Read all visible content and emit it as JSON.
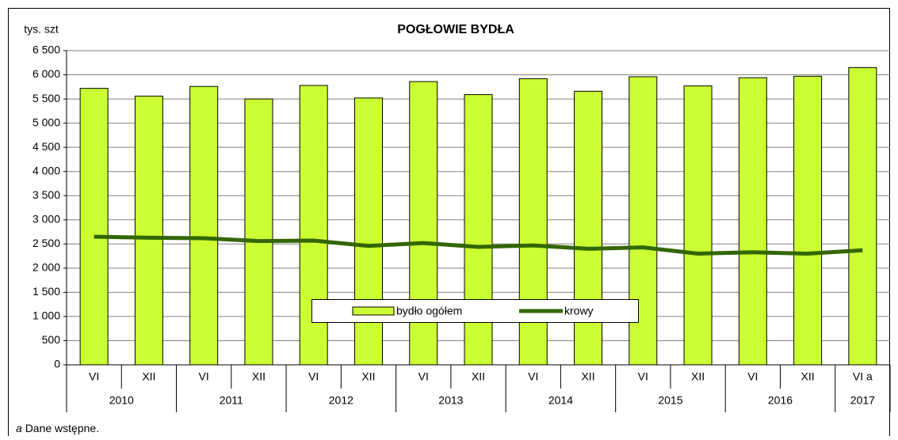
{
  "chart_data": {
    "type": "bar",
    "title": "POGŁOWIE BYDŁA",
    "y_label": "tys. szt",
    "categories": [
      "VI",
      "XII",
      "VI",
      "XII",
      "VI",
      "XII",
      "VI",
      "XII",
      "VI",
      "XII",
      "VI",
      "XII",
      "VI",
      "XII",
      "VI a"
    ],
    "years": [
      "2010",
      null,
      "2011",
      null,
      "2012",
      null,
      "2013",
      null,
      "2014",
      null,
      "2015",
      null,
      "2016",
      null,
      "2017"
    ],
    "series": [
      {
        "name": "bydło ogółem",
        "type": "bar",
        "color": "#ccff33",
        "values": [
          5720,
          5560,
          5760,
          5500,
          5780,
          5520,
          5860,
          5590,
          5920,
          5660,
          5960,
          5770,
          5940,
          5970,
          6150
        ]
      },
      {
        "name": "krowy",
        "type": "line",
        "color": "#336600",
        "values": [
          2650,
          2630,
          2620,
          2560,
          2570,
          2460,
          2520,
          2440,
          2470,
          2400,
          2430,
          2300,
          2330,
          2300,
          2370
        ]
      }
    ],
    "ylim": [
      0,
      6500
    ],
    "yticks": [
      0,
      500,
      {
        "value": 1000,
        "label": "1 000"
      },
      {
        "value": 1500,
        "label": "1 500"
      },
      {
        "value": 2000,
        "label": "2 000"
      },
      {
        "value": 2500,
        "label": "2 500"
      },
      {
        "value": 3000,
        "label": "3 000"
      },
      {
        "value": 3500,
        "label": "3 500"
      },
      {
        "value": 4000,
        "label": "4 000"
      },
      {
        "value": 4500,
        "label": "4 500"
      },
      {
        "value": 5000,
        "label": "5 000"
      },
      {
        "value": 5500,
        "label": "5 500"
      },
      {
        "value": 6000,
        "label": "6 000"
      },
      {
        "value": 6500,
        "label": "6 500"
      }
    ],
    "grid": true,
    "legend": "bottom-center",
    "note": {
      "marker": "a",
      "text": "Dane wstępne."
    }
  }
}
